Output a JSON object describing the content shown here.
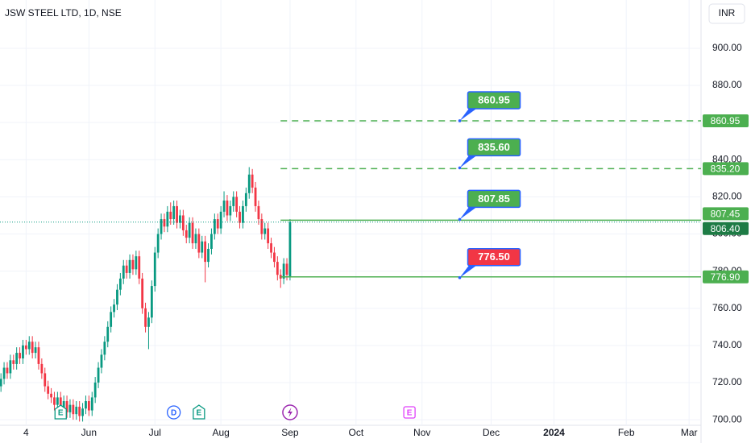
{
  "chart_data": {
    "type": "candlestick",
    "title": "JSW STEEL LTD, 1D, NSE",
    "currency": "INR",
    "up_color": "#089981",
    "down_color": "#f23645",
    "grid": true,
    "xlim": [
      -92.3,
      130.8
    ],
    "ylim": [
      697,
      926
    ],
    "xticks": [
      {
        "value": -84,
        "label": "4"
      },
      {
        "value": -64,
        "label": "Jun"
      },
      {
        "value": -43,
        "label": "Jul"
      },
      {
        "value": -22,
        "label": "Aug"
      },
      {
        "value": 0,
        "label": "Sep"
      },
      {
        "value": 21,
        "label": "Oct"
      },
      {
        "value": 42,
        "label": "Nov"
      },
      {
        "value": 64,
        "label": "Dec"
      },
      {
        "value": 84,
        "label": "2024"
      },
      {
        "value": 107,
        "label": "Feb"
      },
      {
        "value": 127,
        "label": "Mar"
      }
    ],
    "yticks": [
      {
        "value": 700,
        "label": "700.00"
      },
      {
        "value": 720,
        "label": "720.00"
      },
      {
        "value": 740,
        "label": "740.00"
      },
      {
        "value": 760,
        "label": "760.00"
      },
      {
        "value": 780,
        "label": "780.00"
      },
      {
        "value": 800,
        "label": "800.00"
      },
      {
        "value": 820,
        "label": "820.00"
      },
      {
        "value": 840,
        "label": "840.00"
      },
      {
        "value": 860,
        "label": "860.00"
      },
      {
        "value": 880,
        "label": "880.00"
      },
      {
        "value": 900,
        "label": "900.00"
      }
    ],
    "x": [
      -92,
      -91,
      -90,
      -89,
      -88,
      -87,
      -86,
      -85,
      -84,
      -83,
      -82,
      -81,
      -80,
      -79,
      -78,
      -77,
      -76,
      -75,
      -74,
      -73,
      -72,
      -71,
      -70,
      -69,
      -68,
      -67,
      -66,
      -65,
      -64,
      -63,
      -62,
      -61,
      -60,
      -59,
      -58,
      -57,
      -56,
      -55,
      -54,
      -53,
      -52,
      -51,
      -50,
      -49,
      -48,
      -47,
      -46,
      -45,
      -44,
      -43,
      -42,
      -41,
      -40,
      -39,
      -38,
      -37,
      -36,
      -35,
      -34,
      -33,
      -32,
      -31,
      -30,
      -29,
      -28,
      -27,
      -26,
      -25,
      -24,
      -23,
      -22,
      -21,
      -20,
      -19,
      -18,
      -17,
      -16,
      -15,
      -14,
      -13,
      -12,
      -11,
      -10,
      -9,
      -8,
      -7,
      -6,
      -5,
      -4,
      -3,
      -2,
      -1,
      0
    ],
    "open": [
      718,
      722,
      728,
      725,
      732,
      730,
      736,
      733,
      740,
      738,
      742,
      736,
      739,
      730,
      725,
      718,
      714,
      712,
      708,
      712,
      706,
      710,
      704,
      708,
      703,
      707,
      702,
      706,
      710,
      705,
      712,
      720,
      728,
      735,
      742,
      750,
      758,
      762,
      770,
      776,
      783,
      779,
      786,
      781,
      788,
      776,
      760,
      750,
      755,
      772,
      790,
      800,
      808,
      804,
      812,
      808,
      815,
      806,
      810,
      802,
      798,
      806,
      795,
      800,
      790,
      796,
      785,
      792,
      800,
      808,
      803,
      812,
      818,
      810,
      815,
      820,
      812,
      806,
      815,
      822,
      832,
      825,
      815,
      808,
      800,
      803,
      795,
      790,
      785,
      778,
      776,
      784,
      777
    ],
    "high": [
      725,
      731,
      731,
      735,
      735,
      739,
      739,
      743,
      743,
      745,
      745,
      742,
      742,
      733,
      728,
      721,
      717,
      715,
      715,
      715,
      713,
      713,
      711,
      711,
      710,
      710,
      709,
      713,
      713,
      715,
      723,
      731,
      738,
      745,
      753,
      761,
      765,
      773,
      779,
      786,
      786,
      789,
      789,
      791,
      791,
      779,
      763,
      758,
      775,
      793,
      803,
      811,
      811,
      815,
      817,
      818,
      818,
      813,
      813,
      805,
      809,
      809,
      803,
      803,
      799,
      799,
      795,
      803,
      811,
      811,
      815,
      823,
      821,
      818,
      823,
      823,
      815,
      818,
      825,
      836,
      835,
      828,
      818,
      811,
      806,
      806,
      798,
      793,
      788,
      781,
      787,
      787,
      808
    ],
    "low": [
      715,
      719,
      722,
      722,
      727,
      727,
      730,
      730,
      735,
      735,
      733,
      733,
      727,
      722,
      715,
      711,
      709,
      705,
      705,
      703,
      703,
      701,
      701,
      700,
      700,
      699,
      699,
      703,
      702,
      702,
      709,
      717,
      725,
      732,
      739,
      747,
      755,
      759,
      767,
      773,
      776,
      776,
      778,
      778,
      773,
      757,
      747,
      738,
      752,
      769,
      787,
      797,
      801,
      801,
      805,
      805,
      803,
      803,
      799,
      795,
      795,
      792,
      792,
      787,
      787,
      774,
      782,
      789,
      797,
      800,
      800,
      809,
      807,
      807,
      812,
      809,
      803,
      803,
      812,
      819,
      822,
      812,
      805,
      797,
      797,
      792,
      787,
      782,
      775,
      771,
      773,
      775,
      775
    ],
    "close": [
      722,
      728,
      725,
      732,
      730,
      736,
      733,
      740,
      738,
      742,
      736,
      739,
      730,
      725,
      718,
      714,
      712,
      708,
      712,
      706,
      710,
      704,
      708,
      703,
      707,
      702,
      706,
      710,
      705,
      712,
      720,
      728,
      735,
      742,
      750,
      758,
      762,
      770,
      776,
      783,
      779,
      786,
      781,
      788,
      776,
      760,
      750,
      755,
      772,
      790,
      800,
      808,
      804,
      812,
      808,
      815,
      806,
      810,
      802,
      798,
      806,
      795,
      800,
      790,
      796,
      785,
      792,
      800,
      808,
      803,
      812,
      818,
      810,
      815,
      820,
      812,
      806,
      815,
      822,
      832,
      825,
      815,
      808,
      800,
      803,
      795,
      790,
      785,
      778,
      776,
      784,
      778,
      806.4
    ],
    "last_price": {
      "value": 806.4,
      "label": "806.40",
      "color": "#1e7b45"
    },
    "levels": {
      "x_start": -3,
      "values": [
        860.95,
        835.2,
        807.45,
        776.9
      ],
      "value_labels": [
        "860.95",
        "835.20",
        "807.45",
        "776.90"
      ],
      "styles": [
        "dashed",
        "dashed",
        "solid",
        "solid"
      ],
      "color": "#4caf50"
    },
    "callouts": {
      "anchor_x": 54,
      "values": [
        860.95,
        835.6,
        807.85,
        776.5
      ],
      "value_labels": [
        "860.95",
        "835.60",
        "807.85",
        "776.50"
      ],
      "colors": [
        "#4caf50",
        "#4caf50",
        "#4caf50",
        "#f23645"
      ],
      "border": "#2962ff"
    },
    "events": [
      {
        "x": -73,
        "label": "E",
        "color": "#089981"
      },
      {
        "x": -37,
        "label": "D",
        "color": "#2962ff"
      },
      {
        "x": -29,
        "label": "E",
        "color": "#089981"
      },
      {
        "x": 0,
        "label": null,
        "color": "#9c27b0"
      },
      {
        "x": 38,
        "label": "E",
        "color": "#e040fb"
      }
    ]
  }
}
